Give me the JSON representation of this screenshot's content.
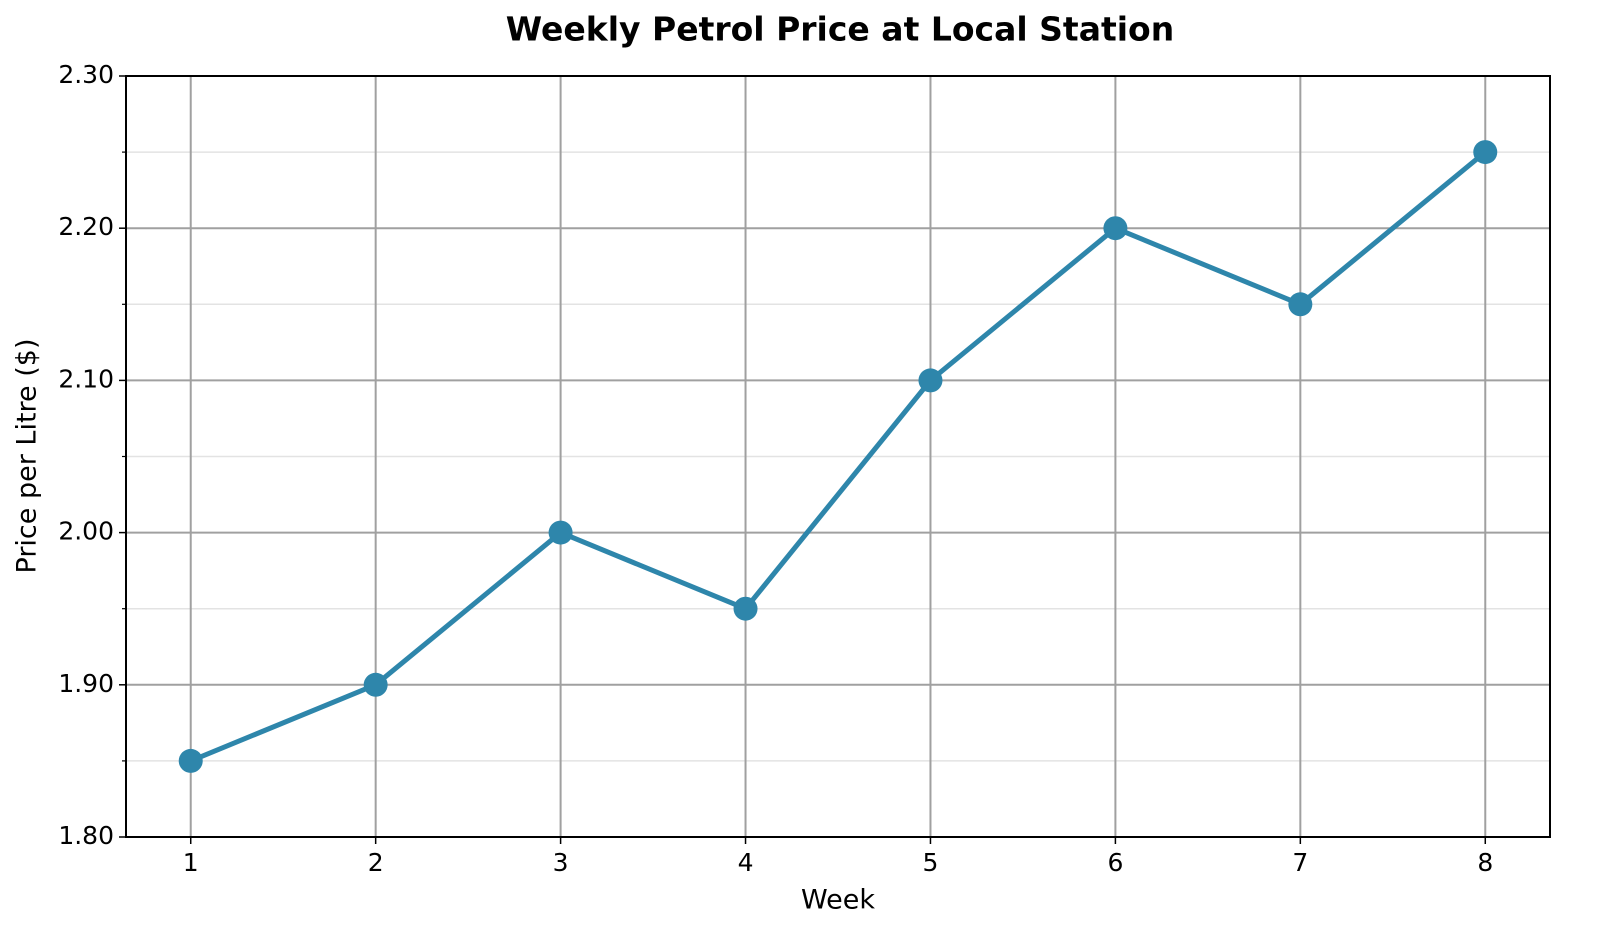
{
  "chart_data": {
    "type": "line",
    "title": "Weekly Petrol Price at Local Station",
    "xlabel": "Week",
    "ylabel": "Price per Litre ($)",
    "x": [
      1,
      2,
      3,
      4,
      5,
      6,
      7,
      8
    ],
    "values": [
      1.85,
      1.9,
      2.0,
      1.95,
      2.1,
      2.2,
      2.15,
      2.25
    ],
    "color": "#2e86ab",
    "xlim": [
      0.65,
      8.35
    ],
    "ylim": [
      1.8,
      2.3
    ],
    "xticks": [
      1,
      2,
      3,
      4,
      5,
      6,
      7,
      8
    ],
    "yticks": [
      {
        "value": 1.8,
        "label": "1.80"
      },
      {
        "value": 1.9,
        "label": "1.90"
      },
      {
        "value": 2.0,
        "label": "2.00"
      },
      {
        "value": 2.1,
        "label": "2.10"
      },
      {
        "value": 2.2,
        "label": "2.20"
      },
      {
        "value": 2.3,
        "label": "2.30"
      }
    ],
    "yminorticks": [
      1.85,
      1.95,
      2.05,
      2.15,
      2.25
    ],
    "grid": true
  }
}
